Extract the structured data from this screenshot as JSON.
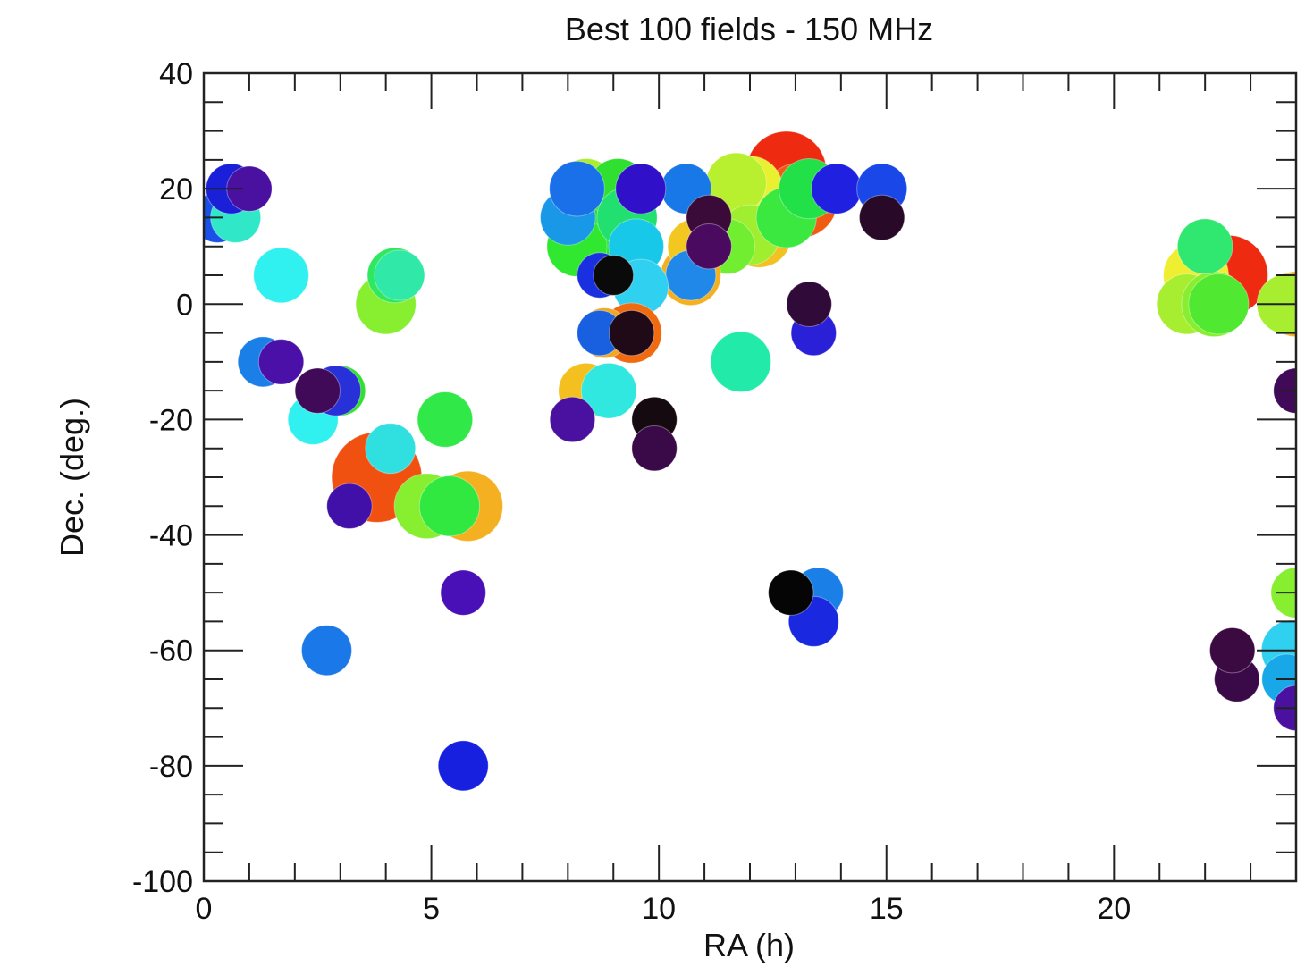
{
  "chart_data": {
    "type": "scatter",
    "title": "Best 100 fields - 150 MHz",
    "xlabel": "RA (h)",
    "ylabel": "Dec. (deg.)",
    "xlim": [
      0,
      24
    ],
    "ylim": [
      -100,
      40
    ],
    "x_ticks": [
      0,
      5,
      10,
      15,
      20
    ],
    "y_ticks": [
      40,
      20,
      0,
      -20,
      -40,
      -60,
      -80,
      -100
    ],
    "x_minor_step": 1,
    "y_minor_step": 5,
    "grid": false,
    "marker_note": "filled circles; color and size vary per field",
    "points": [
      {
        "x": 12.8,
        "y": 23,
        "size": 1.6,
        "color": "#ee2a10"
      },
      {
        "x": 13.1,
        "y": 18,
        "size": 1.5,
        "color": "#f05a12"
      },
      {
        "x": 12.2,
        "y": 12,
        "size": 1.3,
        "color": "#f2c222"
      },
      {
        "x": 12.0,
        "y": 20,
        "size": 1.3,
        "color": "#e8f030"
      },
      {
        "x": 11.7,
        "y": 21,
        "size": 1.2,
        "color": "#b8f030"
      },
      {
        "x": 12.0,
        "y": 12,
        "size": 1.2,
        "color": "#a0ee30"
      },
      {
        "x": 11.5,
        "y": 10,
        "size": 1.1,
        "color": "#72ee30"
      },
      {
        "x": 12.8,
        "y": 15,
        "size": 1.2,
        "color": "#3ae840"
      },
      {
        "x": 13.3,
        "y": 20,
        "size": 1.2,
        "color": "#22e048"
      },
      {
        "x": 10.7,
        "y": 5,
        "size": 1.2,
        "color": "#f4b020"
      },
      {
        "x": 10.8,
        "y": 10,
        "size": 1.1,
        "color": "#f2c820"
      },
      {
        "x": 10.7,
        "y": 5,
        "size": 1.0,
        "color": "#2088e8"
      },
      {
        "x": 10.6,
        "y": 20,
        "size": 1.0,
        "color": "#1878e8"
      },
      {
        "x": 13.9,
        "y": 20,
        "size": 1.0,
        "color": "#2020e0"
      },
      {
        "x": 14.9,
        "y": 20,
        "size": 1.0,
        "color": "#1a48e8"
      },
      {
        "x": 14.9,
        "y": 15,
        "size": 0.9,
        "color": "#280a28"
      },
      {
        "x": 11.1,
        "y": 15,
        "size": 0.9,
        "color": "#3a0a38"
      },
      {
        "x": 11.1,
        "y": 10,
        "size": 0.9,
        "color": "#4a0a60"
      },
      {
        "x": 11.8,
        "y": -10,
        "size": 1.2,
        "color": "#22eaa8"
      },
      {
        "x": 13.4,
        "y": -5,
        "size": 0.9,
        "color": "#2a20d8"
      },
      {
        "x": 13.3,
        "y": 0,
        "size": 0.9,
        "color": "#300a38"
      },
      {
        "x": 8.4,
        "y": 20,
        "size": 1.2,
        "color": "#aaee30"
      },
      {
        "x": 8.5,
        "y": 12,
        "size": 1.3,
        "color": "#22e030"
      },
      {
        "x": 8.2,
        "y": 10,
        "size": 1.2,
        "color": "#30e830"
      },
      {
        "x": 9.1,
        "y": 20,
        "size": 1.2,
        "color": "#30e030"
      },
      {
        "x": 9.3,
        "y": 15,
        "size": 1.2,
        "color": "#22e070"
      },
      {
        "x": 9.5,
        "y": 10,
        "size": 1.1,
        "color": "#18c8e8"
      },
      {
        "x": 9.6,
        "y": 3,
        "size": 1.1,
        "color": "#30d0f0"
      },
      {
        "x": 8.0,
        "y": 15,
        "size": 1.1,
        "color": "#1a98e8"
      },
      {
        "x": 8.2,
        "y": 20,
        "size": 1.1,
        "color": "#1a70e8"
      },
      {
        "x": 8.7,
        "y": 5,
        "size": 0.9,
        "color": "#1a30e0"
      },
      {
        "x": 9.6,
        "y": 20,
        "size": 1.0,
        "color": "#3010c8"
      },
      {
        "x": 9.0,
        "y": 5,
        "size": 0.8,
        "color": "#0a0a0a"
      },
      {
        "x": 9.4,
        "y": -5,
        "size": 1.2,
        "color": "#f06a10"
      },
      {
        "x": 8.8,
        "y": -5,
        "size": 1.0,
        "color": "#f0a820"
      },
      {
        "x": 8.7,
        "y": -5,
        "size": 0.9,
        "color": "#1860e0"
      },
      {
        "x": 9.4,
        "y": -5,
        "size": 0.9,
        "color": "#200a18"
      },
      {
        "x": 8.4,
        "y": -15,
        "size": 1.1,
        "color": "#f4c020"
      },
      {
        "x": 8.9,
        "y": -15,
        "size": 1.1,
        "color": "#30e8e0"
      },
      {
        "x": 8.1,
        "y": -20,
        "size": 0.9,
        "color": "#4a10a0"
      },
      {
        "x": 9.9,
        "y": -20,
        "size": 0.9,
        "color": "#140a10"
      },
      {
        "x": 9.9,
        "y": -25,
        "size": 0.9,
        "color": "#3a0a48"
      },
      {
        "x": 0.3,
        "y": 15,
        "size": 1.0,
        "color": "#1850e8"
      },
      {
        "x": 0.7,
        "y": 15,
        "size": 1.0,
        "color": "#30e8c8"
      },
      {
        "x": 0.6,
        "y": 20,
        "size": 1.0,
        "color": "#1a20d8"
      },
      {
        "x": 1.0,
        "y": 20,
        "size": 0.9,
        "color": "#4a10a0"
      },
      {
        "x": 1.7,
        "y": 5,
        "size": 1.1,
        "color": "#30f0f0"
      },
      {
        "x": 1.3,
        "y": -10,
        "size": 1.0,
        "color": "#1a80e8"
      },
      {
        "x": 1.7,
        "y": -10,
        "size": 0.9,
        "color": "#4a10a8"
      },
      {
        "x": 2.4,
        "y": -20,
        "size": 1.0,
        "color": "#30f0f0"
      },
      {
        "x": 3.0,
        "y": -15,
        "size": 1.0,
        "color": "#30e030"
      },
      {
        "x": 2.9,
        "y": -15,
        "size": 1.0,
        "color": "#2830d8"
      },
      {
        "x": 2.5,
        "y": -15,
        "size": 0.9,
        "color": "#400a58"
      },
      {
        "x": 3.8,
        "y": -30,
        "size": 1.8,
        "color": "#f05010"
      },
      {
        "x": 4.1,
        "y": -25,
        "size": 1.0,
        "color": "#30e0e0"
      },
      {
        "x": 3.2,
        "y": -35,
        "size": 0.9,
        "color": "#4010a8"
      },
      {
        "x": 4.0,
        "y": 0,
        "size": 1.2,
        "color": "#88ee30"
      },
      {
        "x": 4.2,
        "y": 5,
        "size": 1.1,
        "color": "#30e860"
      },
      {
        "x": 4.3,
        "y": 5,
        "size": 1.0,
        "color": "#30e8a8"
      },
      {
        "x": 5.8,
        "y": -35,
        "size": 1.4,
        "color": "#f4b020"
      },
      {
        "x": 4.9,
        "y": -35,
        "size": 1.3,
        "color": "#88ee30"
      },
      {
        "x": 5.4,
        "y": -35,
        "size": 1.2,
        "color": "#30e840"
      },
      {
        "x": 5.3,
        "y": -20,
        "size": 1.1,
        "color": "#30e848"
      },
      {
        "x": 5.7,
        "y": -50,
        "size": 0.9,
        "color": "#4a10b8"
      },
      {
        "x": 2.7,
        "y": -60,
        "size": 1.0,
        "color": "#1a78e8"
      },
      {
        "x": 5.7,
        "y": -80,
        "size": 1.0,
        "color": "#1820e0"
      },
      {
        "x": 13.5,
        "y": -50,
        "size": 1.0,
        "color": "#1a80e8"
      },
      {
        "x": 13.4,
        "y": -55,
        "size": 1.0,
        "color": "#1a28e0"
      },
      {
        "x": 12.9,
        "y": -50,
        "size": 0.9,
        "color": "#050505"
      },
      {
        "x": 22.5,
        "y": 5,
        "size": 1.6,
        "color": "#ee2a10"
      },
      {
        "x": 21.8,
        "y": 5,
        "size": 1.3,
        "color": "#f0ee30"
      },
      {
        "x": 21.6,
        "y": 0,
        "size": 1.2,
        "color": "#a8ee30"
      },
      {
        "x": 22.2,
        "y": 0,
        "size": 1.3,
        "color": "#88ee30"
      },
      {
        "x": 22.3,
        "y": 0,
        "size": 1.2,
        "color": "#50e830"
      },
      {
        "x": 22.0,
        "y": 10,
        "size": 1.1,
        "color": "#30e870"
      },
      {
        "x": 24.0,
        "y": 0,
        "size": 1.3,
        "color": "#f4b020"
      },
      {
        "x": 23.8,
        "y": 0,
        "size": 1.2,
        "color": "#a8ee30"
      },
      {
        "x": 24.0,
        "y": -15,
        "size": 0.9,
        "color": "#400a58"
      },
      {
        "x": 24.0,
        "y": -50,
        "size": 1.0,
        "color": "#88ee30"
      },
      {
        "x": 23.9,
        "y": -60,
        "size": 1.2,
        "color": "#30d0f0"
      },
      {
        "x": 23.8,
        "y": -65,
        "size": 1.0,
        "color": "#18a8e8"
      },
      {
        "x": 22.7,
        "y": -65,
        "size": 0.9,
        "color": "#3a0a48"
      },
      {
        "x": 22.6,
        "y": -60,
        "size": 0.9,
        "color": "#3a0a40"
      },
      {
        "x": 24.0,
        "y": -70,
        "size": 0.9,
        "color": "#4a10a0"
      }
    ]
  }
}
